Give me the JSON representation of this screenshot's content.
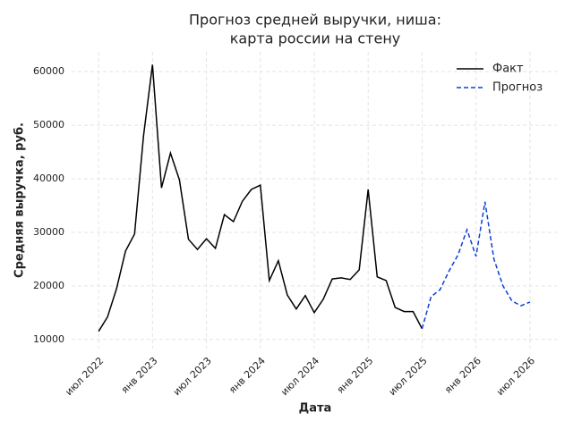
{
  "chart_data": {
    "type": "line",
    "title": [
      "Прогноз средней выручки, ниша:",
      "карта россии на стену"
    ],
    "xlabel": "Дата",
    "ylabel": "Средняя выручка, руб.",
    "xlim": [
      "2022-04",
      "2026-10"
    ],
    "ylim": [
      8300,
      63700
    ],
    "xticks": [
      {
        "value": "2022-07",
        "label": "июл 2022"
      },
      {
        "value": "2023-01",
        "label": "янв 2023"
      },
      {
        "value": "2023-07",
        "label": "июл 2023"
      },
      {
        "value": "2024-01",
        "label": "янв 2024"
      },
      {
        "value": "2024-07",
        "label": "июл 2024"
      },
      {
        "value": "2025-01",
        "label": "янв 2025"
      },
      {
        "value": "2025-07",
        "label": "июл 2025"
      },
      {
        "value": "2026-01",
        "label": "янв 2026"
      },
      {
        "value": "2026-07",
        "label": "июл 2026"
      }
    ],
    "yticks": [
      10000,
      20000,
      30000,
      40000,
      50000,
      60000
    ],
    "grid": true,
    "legend": "upper right",
    "series": [
      {
        "name": "Факт",
        "color": "#000000",
        "dash": false,
        "x": [
          "2022-07",
          "2022-08",
          "2022-09",
          "2022-10",
          "2022-11",
          "2022-12",
          "2023-01",
          "2023-02",
          "2023-03",
          "2023-04",
          "2023-05",
          "2023-06",
          "2023-07",
          "2023-08",
          "2023-09",
          "2023-10",
          "2023-11",
          "2023-12",
          "2024-01",
          "2024-02",
          "2024-03",
          "2024-04",
          "2024-05",
          "2024-06",
          "2024-07",
          "2024-08",
          "2024-09",
          "2024-10",
          "2024-11",
          "2024-12",
          "2025-01",
          "2025-02",
          "2025-03",
          "2025-04",
          "2025-05",
          "2025-06",
          "2025-07"
        ],
        "values": [
          11500,
          14200,
          19500,
          26500,
          29700,
          48000,
          61300,
          38300,
          44800,
          39800,
          28700,
          26800,
          28800,
          27000,
          33300,
          32000,
          35800,
          38000,
          38800,
          21000,
          24700,
          18300,
          15700,
          18200,
          15000,
          17500,
          21300,
          21500,
          21200,
          23000,
          38000,
          21700,
          21000,
          16000,
          15200,
          15200,
          12000
        ]
      },
      {
        "name": "Прогноз",
        "color": "#0a3fd6",
        "dash": true,
        "x": [
          "2025-07",
          "2025-08",
          "2025-09",
          "2025-10",
          "2025-11",
          "2025-12",
          "2026-01",
          "2026-02",
          "2026-03",
          "2026-04",
          "2026-05",
          "2026-06",
          "2026-07"
        ],
        "values": [
          12000,
          18000,
          19300,
          22800,
          25800,
          30500,
          25500,
          35700,
          25000,
          20000,
          17200,
          16300,
          17000
        ]
      }
    ]
  }
}
